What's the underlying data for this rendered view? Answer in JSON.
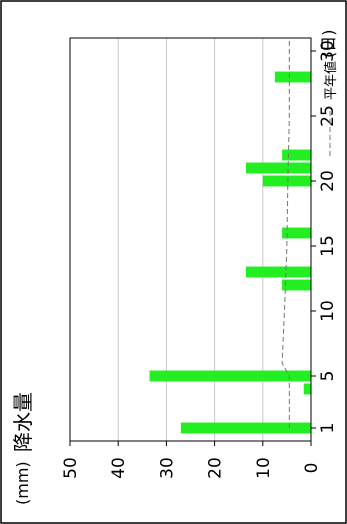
{
  "chart_data": {
    "type": "bar",
    "title": "降水量",
    "title_unit": "(mm)",
    "xlabel_unit": "(日)",
    "x_ticks": [
      1,
      5,
      10,
      15,
      20,
      25,
      30
    ],
    "y_ticks": [
      0,
      10,
      20,
      30,
      40,
      50
    ],
    "xlim": [
      0,
      31
    ],
    "ylim": [
      0,
      50
    ],
    "grid": true,
    "legend_position": "top-right",
    "series": [
      {
        "kind": "bar",
        "color": "#22ee22",
        "days": [
          1,
          4,
          5,
          12,
          13,
          16,
          20,
          21,
          22,
          28
        ],
        "values": [
          27,
          1.5,
          33.5,
          6,
          13.5,
          6,
          10,
          13.5,
          6,
          7.5
        ]
      },
      {
        "kind": "line",
        "name": "平年値",
        "style": "dashed",
        "color": "#777777",
        "days": [
          1,
          5,
          6,
          10,
          15,
          20,
          25,
          31
        ],
        "values": [
          4.5,
          4.5,
          6,
          5.5,
          5,
          4.8,
          4.5,
          4.5
        ]
      }
    ]
  }
}
